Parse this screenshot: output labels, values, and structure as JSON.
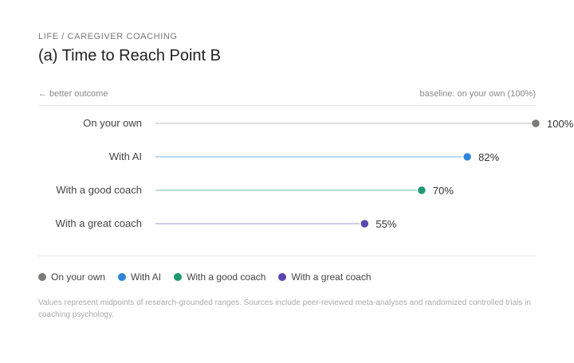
{
  "header": {
    "eyebrow": "LIFE / CAREGIVER COACHING",
    "title": "(a) Time to Reach Point B"
  },
  "hints": {
    "left": "← better outcome",
    "right": "baseline: on your own (100%)"
  },
  "chart_data": {
    "type": "scatter",
    "title": "(a) Time to Reach Point B",
    "unit": "%",
    "xlim": [
      0,
      100
    ],
    "categories": [
      "On your own",
      "With AI",
      "With a good coach",
      "With a great coach"
    ],
    "values": [
      100,
      82,
      70,
      55
    ],
    "labels": [
      "100%",
      "82%",
      "70%",
      "55%"
    ],
    "colors": [
      "#7b7b77",
      "#2f86d8",
      "#1f9a72",
      "#5b46b0"
    ],
    "line_colors": [
      "#d2d2cf",
      "#a9cdee",
      "#a3d6c4",
      "#c4bbe0"
    ],
    "grid": false,
    "legend_position": "bottom-left"
  },
  "legend": {
    "items": [
      {
        "label": "On your own",
        "color": "#7b7b77"
      },
      {
        "label": "With AI",
        "color": "#2f86d8"
      },
      {
        "label": "With a good coach",
        "color": "#1f9a72"
      },
      {
        "label": "With a great coach",
        "color": "#5b46b0"
      }
    ]
  },
  "footnote": "Values represent midpoints of research-grounded ranges. Sources include peer-reviewed meta-analyses and randomized controlled trials in coaching psychology."
}
